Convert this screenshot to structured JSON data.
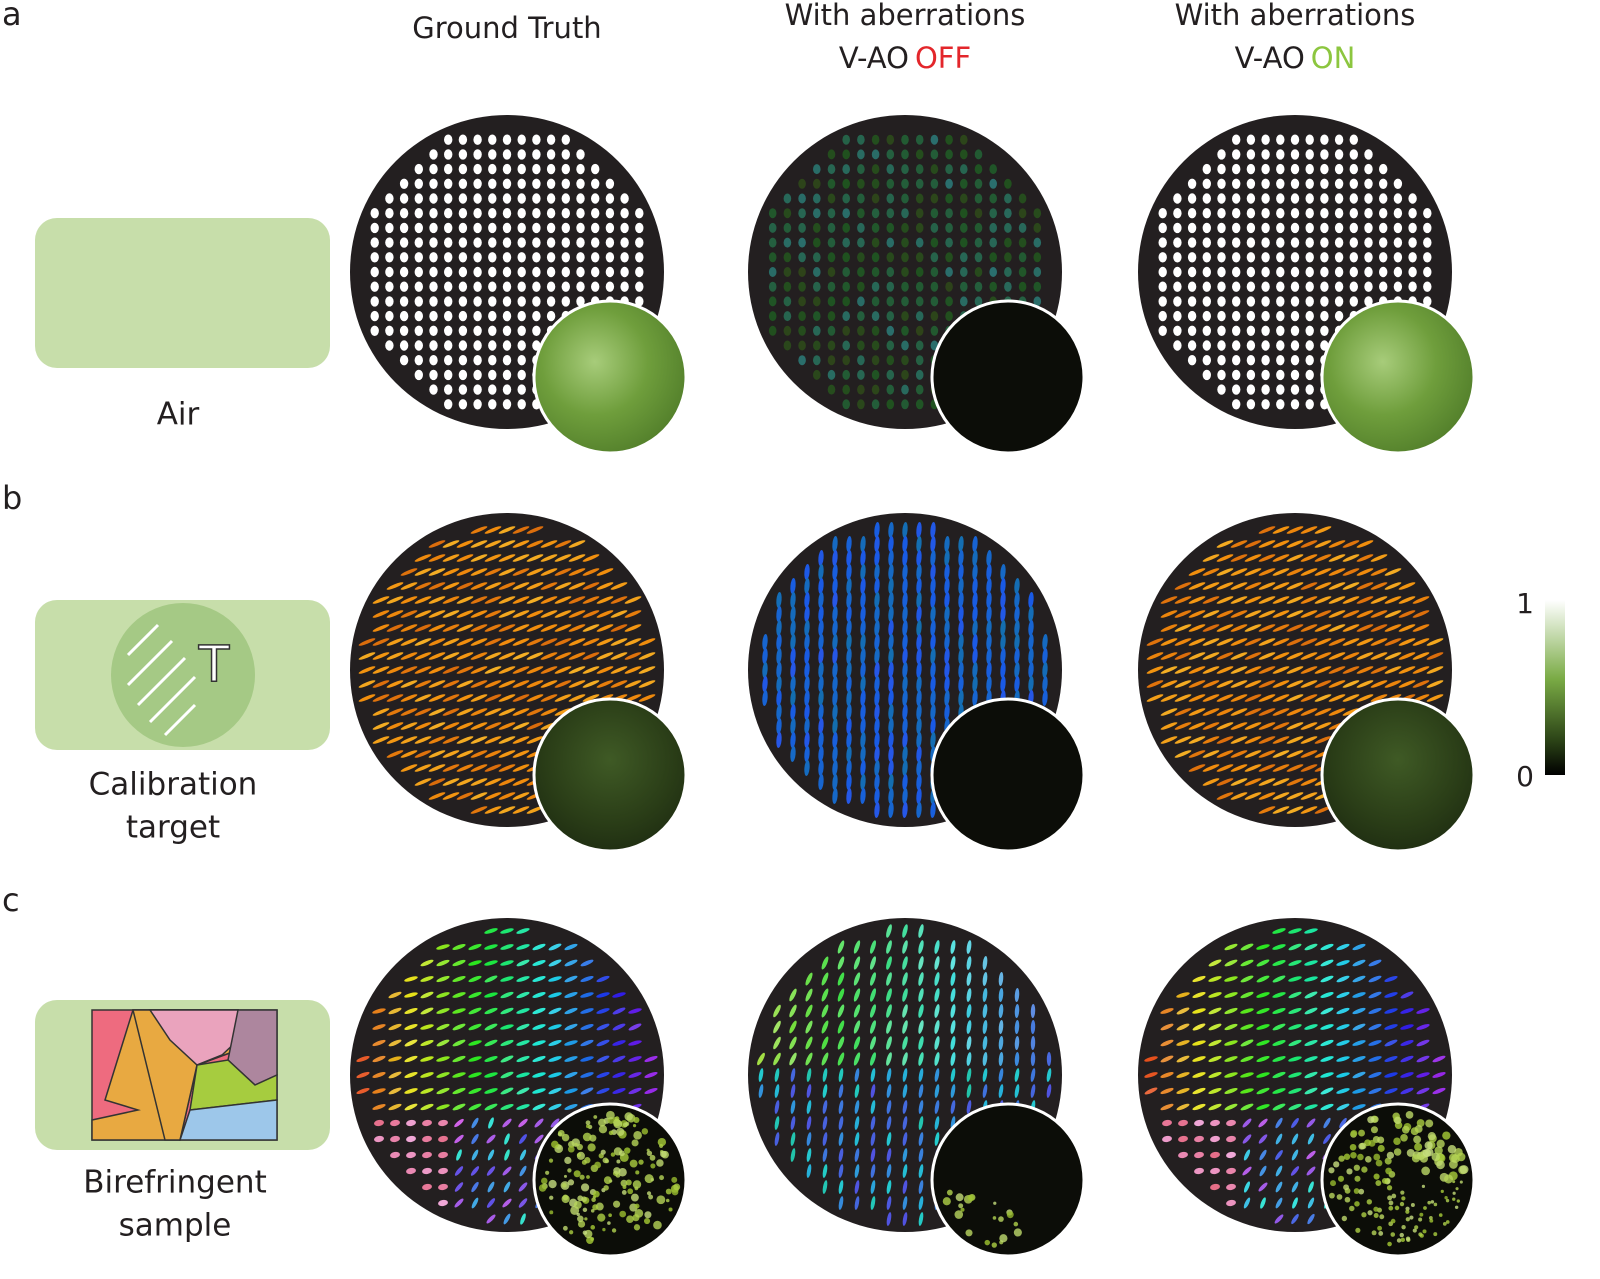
{
  "panels": [
    {
      "letter": "a",
      "sample_label_lines": [
        "Air"
      ]
    },
    {
      "letter": "b",
      "sample_label_lines": [
        "Calibration",
        "target"
      ]
    },
    {
      "letter": "c",
      "sample_label_lines": [
        "Birefringent",
        "sample"
      ]
    }
  ],
  "columns": {
    "ground_truth": "Ground Truth",
    "off": {
      "line1": "With aberrations",
      "prefix": "V-AO",
      "state": "OFF"
    },
    "on": {
      "line1": "With aberrations",
      "prefix": "V-AO",
      "state": "ON"
    }
  },
  "calibration_glyph": "T",
  "colorbar": {
    "max": 1,
    "min": 0
  }
}
